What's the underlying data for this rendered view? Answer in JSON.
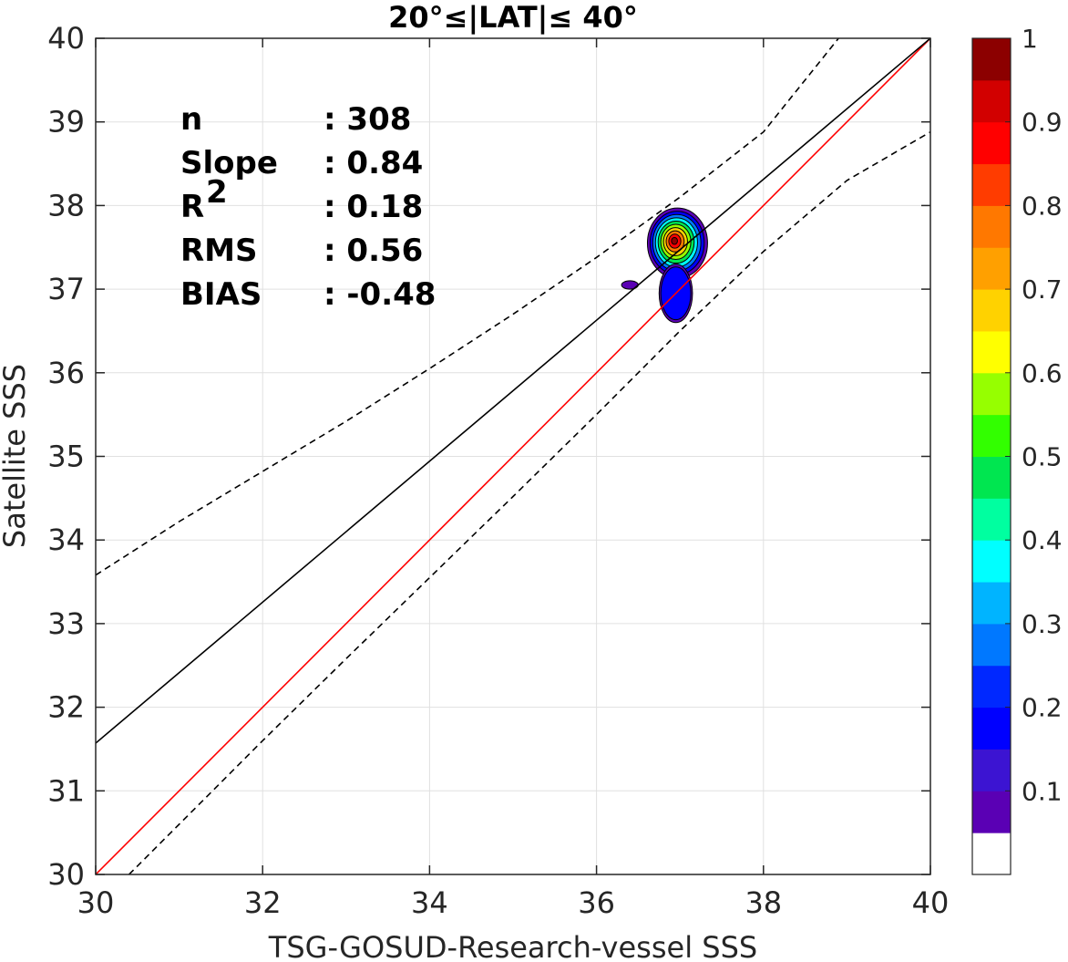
{
  "chart_data": {
    "type": "contour",
    "title": "20°≤|LAT|≤ 40°",
    "xlabel": "TSG-GOSUD-Research-vessel SSS",
    "ylabel": "Satellite SSS",
    "xlim": [
      30,
      40
    ],
    "ylim": [
      30,
      40
    ],
    "xticks": [
      "30",
      "32",
      "34",
      "36",
      "38",
      "40"
    ],
    "yticks": [
      "30",
      "31",
      "32",
      "33",
      "34",
      "35",
      "36",
      "37",
      "38",
      "39",
      "40"
    ],
    "grid": true,
    "stats": [
      {
        "label": "n",
        "value": ": 308"
      },
      {
        "label": "Slope",
        "value": ": 0.84"
      },
      {
        "label": "R",
        "sup": "2",
        "value": ": 0.18"
      },
      {
        "label": "RMS",
        "value": ": 0.56"
      },
      {
        "label": "BIAS",
        "value": ": -0.48"
      }
    ],
    "lines": [
      {
        "name": "one-to-one",
        "color": "#ff0000",
        "points": [
          [
            30,
            30
          ],
          [
            40,
            40
          ]
        ]
      },
      {
        "name": "regression",
        "color": "#000000",
        "points": [
          [
            30,
            31.57
          ],
          [
            40,
            40
          ]
        ]
      },
      {
        "name": "upper-bound",
        "color": "#000000",
        "dashed": true,
        "points": [
          [
            30,
            33.58
          ],
          [
            31,
            34.22
          ],
          [
            32,
            34.82
          ],
          [
            33,
            35.42
          ],
          [
            34,
            36.05
          ],
          [
            35,
            36.7
          ],
          [
            36,
            37.38
          ],
          [
            37,
            38.1
          ],
          [
            38,
            38.88
          ],
          [
            38.9,
            40
          ]
        ]
      },
      {
        "name": "lower-bound",
        "color": "#000000",
        "dashed": true,
        "points": [
          [
            30.4,
            30
          ],
          [
            31,
            30.6
          ],
          [
            32,
            31.6
          ],
          [
            33,
            32.58
          ],
          [
            34,
            33.55
          ],
          [
            35,
            34.52
          ],
          [
            36,
            35.5
          ],
          [
            37,
            36.5
          ],
          [
            38,
            37.45
          ],
          [
            39,
            38.3
          ],
          [
            40,
            38.88
          ]
        ]
      }
    ],
    "density": {
      "peak": [
        36.93,
        37.58
      ],
      "blobs": [
        {
          "cx": 36.97,
          "cy": 37.55,
          "rx": 0.36,
          "ry": 0.42
        },
        {
          "cx": 36.95,
          "cy": 36.95,
          "rx": 0.2,
          "ry": 0.35
        },
        {
          "cx": 36.4,
          "cy": 37.05,
          "rx": 0.1,
          "ry": 0.05
        }
      ],
      "levels": [
        0.05,
        0.1,
        0.2,
        0.3,
        0.4,
        0.5,
        0.6,
        0.7,
        0.8,
        0.9
      ]
    },
    "colorbar": {
      "range": [
        0,
        1
      ],
      "ticks": [
        "0.1",
        "0.2",
        "0.3",
        "0.4",
        "0.5",
        "0.6",
        "0.7",
        "0.8",
        "0.9",
        "1"
      ],
      "colors": [
        "#ffffff",
        "#5a00b4",
        "#3c14d2",
        "#0000ff",
        "#0028ff",
        "#0078ff",
        "#00b4ff",
        "#00ffff",
        "#00ffa0",
        "#00e650",
        "#32ff00",
        "#96ff00",
        "#ffff00",
        "#ffd200",
        "#ffa000",
        "#ff7800",
        "#ff3c00",
        "#ff0000",
        "#d20000",
        "#8c0000"
      ]
    }
  }
}
